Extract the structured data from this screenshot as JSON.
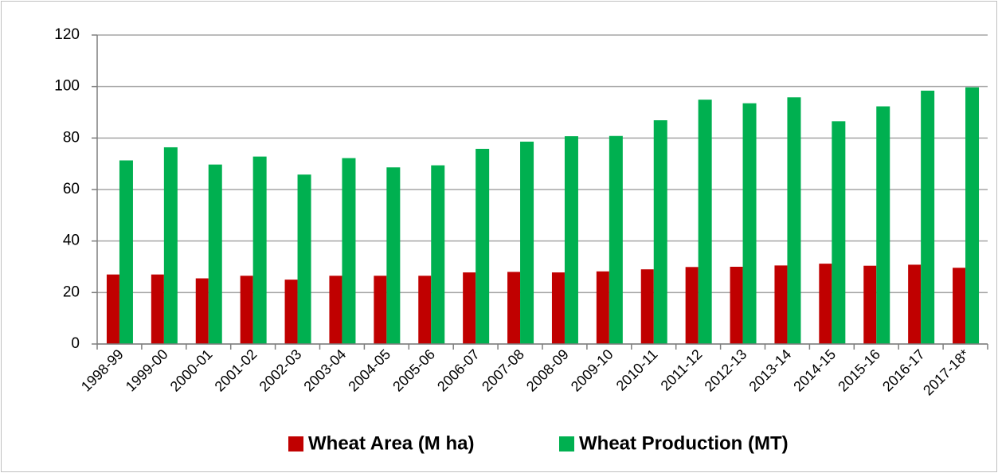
{
  "chart_data": {
    "type": "bar",
    "categories": [
      "1998-99",
      "1999-00",
      "2000-01",
      "2001-02",
      "2002-03",
      "2003-04",
      "2004-05",
      "2005-06",
      "2006-07",
      "2007-08",
      "2008-09",
      "2009-10",
      "2010-11",
      "2011-12",
      "2012-13",
      "2013-14",
      "2014-15",
      "2015-16",
      "2016-17",
      "2017-18*"
    ],
    "series": [
      {
        "name": "Wheat Area (M ha)",
        "color": "#c00000",
        "values": [
          27,
          27,
          25.5,
          26.5,
          25,
          26.5,
          26.5,
          26.5,
          27.8,
          28,
          27.8,
          28.2,
          29,
          29.9,
          30,
          30.5,
          31.2,
          30.4,
          30.8,
          29.6
        ]
      },
      {
        "name": "Wheat Production (MT)",
        "color": "#00b050",
        "values": [
          71.3,
          76.4,
          69.7,
          72.8,
          65.8,
          72.2,
          68.6,
          69.4,
          75.8,
          78.6,
          80.7,
          80.8,
          86.9,
          94.9,
          93.5,
          95.8,
          86.5,
          92.3,
          98.4,
          99.7
        ]
      }
    ],
    "ylim": [
      0,
      120
    ],
    "yticks": [
      0,
      20,
      40,
      60,
      80,
      100,
      120
    ],
    "grid": true,
    "legend": "bottom"
  }
}
